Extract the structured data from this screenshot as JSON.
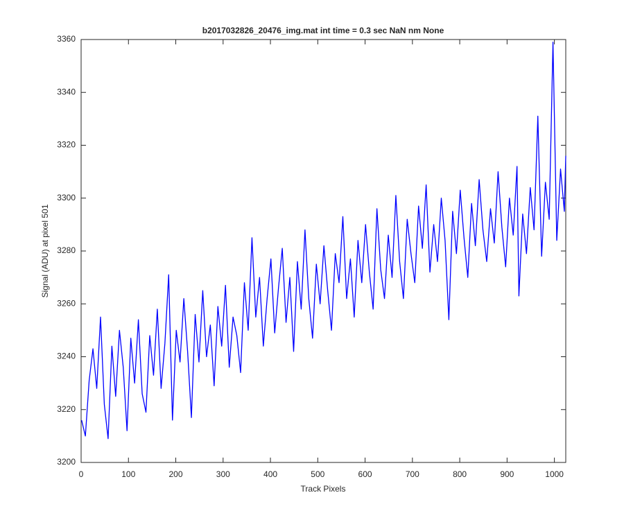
{
  "chart_data": {
    "type": "line",
    "title": "b2017032826_20476_img.mat int time = 0.3 sec  NaN nm None",
    "xlabel": "Track Pixels",
    "ylabel": "Signal (ADU) at pixel 501",
    "x": [
      1,
      9,
      17,
      25,
      33,
      41,
      49,
      57,
      65,
      73,
      81,
      89,
      97,
      105,
      113,
      121,
      129,
      137,
      145,
      153,
      161,
      169,
      177,
      185,
      193,
      201,
      209,
      217,
      225,
      233,
      241,
      249,
      257,
      265,
      273,
      281,
      289,
      297,
      305,
      313,
      321,
      329,
      337,
      345,
      353,
      361,
      369,
      377,
      385,
      393,
      401,
      409,
      417,
      425,
      433,
      441,
      449,
      457,
      465,
      473,
      481,
      489,
      497,
      505,
      513,
      521,
      529,
      537,
      545,
      553,
      561,
      569,
      577,
      585,
      593,
      601,
      609,
      617,
      625,
      633,
      641,
      649,
      657,
      665,
      673,
      681,
      689,
      697,
      705,
      713,
      721,
      729,
      737,
      745,
      753,
      761,
      769,
      777,
      785,
      793,
      801,
      809,
      817,
      825,
      833,
      841,
      849,
      857,
      865,
      873,
      881,
      889,
      897,
      905,
      913,
      921,
      925,
      933,
      941,
      949,
      957,
      965,
      973,
      981,
      989,
      997,
      1005,
      1013,
      1021,
      1024
    ],
    "series": [
      {
        "color": "#0000ff",
        "values": [
          3216,
          3210,
          3231,
          3243,
          3228,
          3255,
          3222,
          3209,
          3244,
          3225,
          3250,
          3236,
          3212,
          3247,
          3230,
          3254,
          3226,
          3219,
          3248,
          3233,
          3258,
          3228,
          3245,
          3271,
          3216,
          3250,
          3238,
          3262,
          3242,
          3217,
          3256,
          3238,
          3265,
          3240,
          3252,
          3229,
          3259,
          3244,
          3267,
          3236,
          3255,
          3248,
          3234,
          3268,
          3250,
          3285,
          3255,
          3270,
          3244,
          3262,
          3277,
          3249,
          3266,
          3281,
          3253,
          3270,
          3242,
          3276,
          3258,
          3288,
          3262,
          3247,
          3275,
          3260,
          3282,
          3265,
          3250,
          3279,
          3268,
          3293,
          3262,
          3277,
          3255,
          3284,
          3268,
          3290,
          3272,
          3258,
          3296,
          3273,
          3262,
          3286,
          3270,
          3301,
          3276,
          3262,
          3292,
          3279,
          3268,
          3297,
          3281,
          3305,
          3272,
          3290,
          3276,
          3300,
          3284,
          3254,
          3295,
          3279,
          3303,
          3285,
          3270,
          3298,
          3282,
          3307,
          3288,
          3276,
          3296,
          3283,
          3310,
          3289,
          3274,
          3300,
          3286,
          3312,
          3263,
          3294,
          3279,
          3304,
          3288,
          3331,
          3278,
          3306,
          3292,
          3359,
          3284,
          3311,
          3295,
          3316
        ]
      }
    ],
    "xlim": [
      0,
      1024
    ],
    "ylim": [
      3200,
      3360
    ],
    "xticks": [
      0,
      100,
      200,
      300,
      400,
      500,
      600,
      700,
      800,
      900,
      1000
    ],
    "yticks": [
      3200,
      3220,
      3240,
      3260,
      3280,
      3300,
      3320,
      3340,
      3360
    ]
  }
}
